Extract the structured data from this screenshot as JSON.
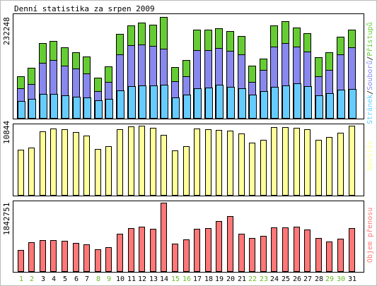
{
  "chart_data": {
    "type": "bar",
    "title": "Denní statistika za srpen 2009",
    "x_labels": [
      "1",
      "2",
      "3",
      "4",
      "5",
      "6",
      "7",
      "8",
      "9",
      "10",
      "11",
      "12",
      "13",
      "14",
      "15",
      "16",
      "17",
      "18",
      "19",
      "20",
      "21",
      "22",
      "23",
      "24",
      "25",
      "26",
      "27",
      "28",
      "29",
      "30",
      "31"
    ],
    "weekend_days": [
      1,
      2,
      8,
      9,
      15,
      16,
      22,
      23,
      29,
      30
    ],
    "colors": {
      "weekday_label": "#000000",
      "weekend_label": "#66bb22",
      "hits": "#66cc33",
      "files": "#8888ee",
      "pages": "#66ccff",
      "visits": "#ffff99",
      "kbytes": "#ff7777"
    },
    "panels": [
      {
        "id": "top",
        "max_label": "232248",
        "ymax": 232248,
        "legend": {
          "pages": "Stránek",
          "files": "Souborů",
          "hits": "Přístupů",
          "sep": "/"
        },
        "series": [
          {
            "key": "hits",
            "values": [
              95000,
              115000,
              170000,
              175000,
              160000,
              150000,
              140000,
              92000,
              118000,
              191000,
              210000,
              217000,
              212000,
              229000,
              116000,
              132000,
              201000,
              201000,
              204000,
              197000,
              186000,
              120000,
              135000,
              210000,
              220000,
              205000,
              192000,
              138000,
              149000,
              185000,
              200000
            ]
          },
          {
            "key": "files",
            "values": [
              68000,
              78000,
              125000,
              132000,
              120000,
              113000,
              102000,
              62000,
              82000,
              145000,
              165000,
              167000,
              164000,
              157000,
              85000,
              96000,
              155000,
              155000,
              159000,
              153000,
              144000,
              82000,
              110000,
              162000,
              170000,
              162000,
              151000,
              95000,
              110000,
              145000,
              160000
            ]
          },
          {
            "key": "pages",
            "values": [
              40000,
              45000,
              55000,
              56000,
              53000,
              50000,
              48000,
              42000,
              44000,
              64000,
              73000,
              74000,
              74000,
              77000,
              48000,
              54000,
              68000,
              70000,
              76000,
              71000,
              68000,
              54000,
              62000,
              72000,
              75000,
              79000,
              73000,
              52000,
              57000,
              65000,
              67000
            ]
          }
        ]
      },
      {
        "id": "mid",
        "max_label": "10844",
        "ymax": 10844,
        "legend": {
          "visits": "Návštěv"
        },
        "series": [
          {
            "key": "visits",
            "values": [
              7100,
              7400,
              10000,
              10400,
              10300,
              9900,
              9300,
              7200,
              7700,
              10300,
              10700,
              10800,
              10500,
              9400,
              7000,
              7700,
              10400,
              10300,
              10200,
              10100,
              9600,
              8200,
              8600,
              10600,
              10600,
              10500,
              10300,
              8700,
              9100,
              9700,
              10800
            ]
          }
        ]
      },
      {
        "id": "bottom",
        "max_label": "1842751",
        "ymax": 1842751,
        "legend": {
          "kbytes": "Objem přenosu"
        },
        "series": [
          {
            "key": "kbytes",
            "values": [
              590000,
              790000,
              850000,
              840000,
              820000,
              780000,
              730000,
              610000,
              660000,
              1020000,
              1170000,
              1200000,
              1150000,
              1842751,
              750000,
              870000,
              1150000,
              1160000,
              1360000,
              1480000,
              1010000,
              910000,
              960000,
              1190000,
              1190000,
              1200000,
              1130000,
              910000,
              800000,
              880000,
              1170000
            ]
          }
        ]
      }
    ]
  }
}
